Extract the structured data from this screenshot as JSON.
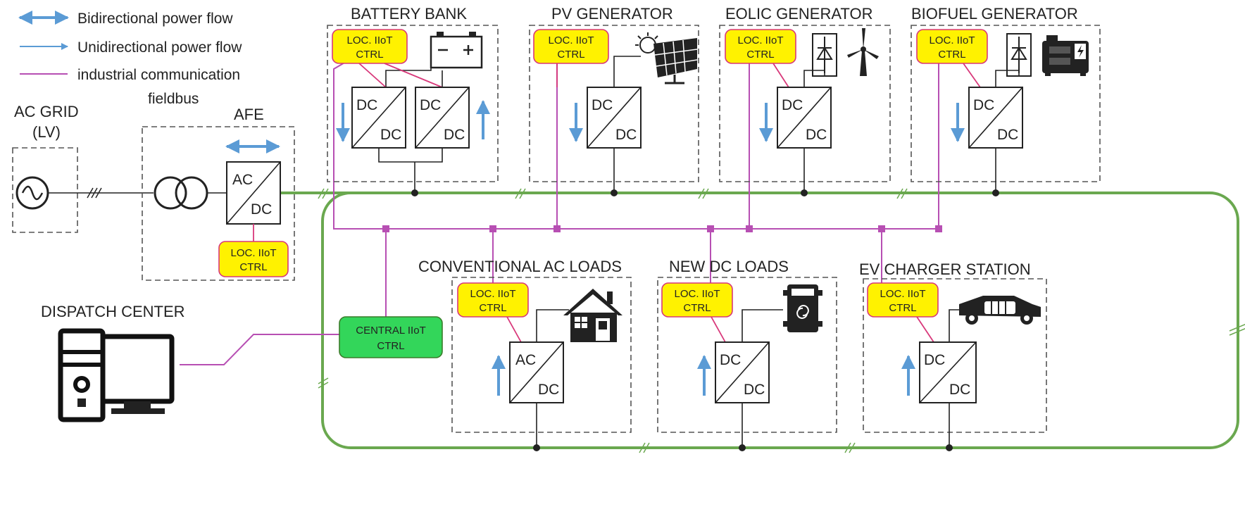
{
  "legend": {
    "bidirectional": "Bidirectional power flow",
    "unidirectional": "Unidirectional power flow",
    "comm_line1": "industrial communication",
    "comm_line2": "fieldbus"
  },
  "blocks": {
    "ac_grid_line1": "AC GRID",
    "ac_grid_line2": "(LV)",
    "afe": "AFE",
    "battery": "BATTERY BANK",
    "pv": "PV GENERATOR",
    "eolic": "EOLIC GENERATOR",
    "biofuel": "BIOFUEL GENERATOR",
    "ac_loads": "CONVENTIONAL AC LOADS",
    "dc_loads": "NEW DC LOADS",
    "ev": "EV CHARGER STATION",
    "dispatch": "DISPATCH CENTER"
  },
  "controllers": {
    "local_line1": "LOC. IIoT",
    "local_line2": "CTRL",
    "central_line1": "CENTRAL IIoT",
    "central_line2": "CTRL"
  },
  "converters": {
    "ac": "AC",
    "dc": "DC"
  },
  "colors": {
    "dc_bus": "#6aa84f",
    "fieldbus": "#b74fb3",
    "local_ctrl": "#fff200",
    "central_ctrl": "#33d65a",
    "power_flow_arrow": "#5b9bd5"
  },
  "icons": [
    "ac-source-icon",
    "transformer-icon",
    "battery-icon",
    "solar-panel-icon",
    "rectifier-icon",
    "wind-turbine-icon",
    "generator-icon",
    "house-icon",
    "dc-load-icon",
    "electric-car-icon",
    "computer-icon"
  ]
}
